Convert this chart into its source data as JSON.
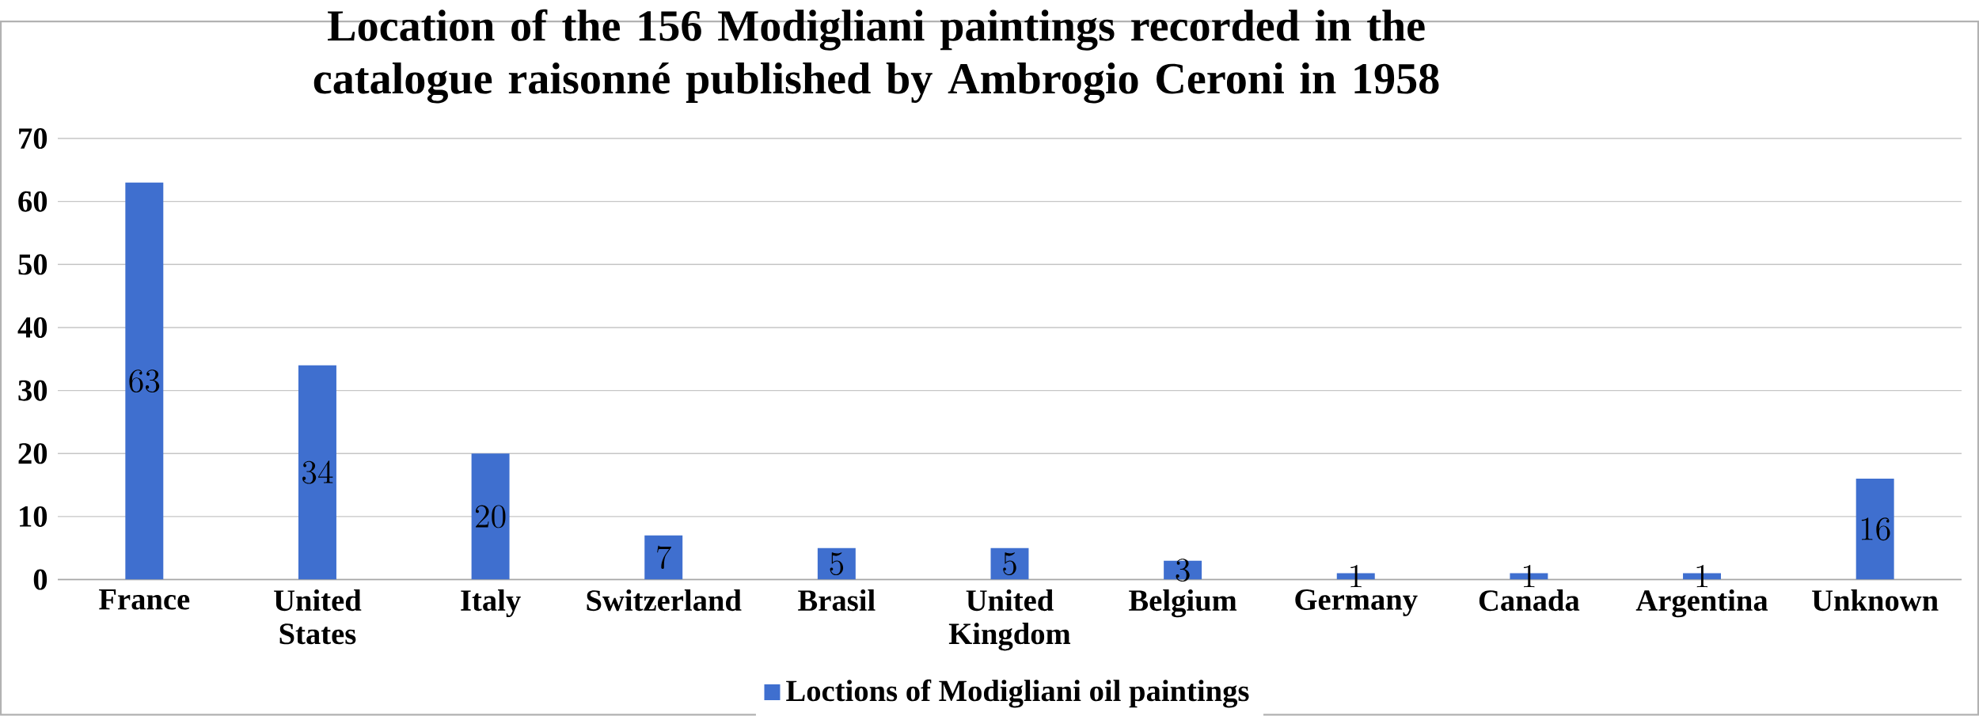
{
  "chart_data": {
    "type": "bar",
    "title": "Location of the 156 Modigliani paintings recorded in the catalogue raisonné published by Ambrogio Ceroni in 1958",
    "categories": [
      "France",
      "United States",
      "Italy",
      "Switzerland",
      "Brasil",
      "United Kingdom",
      "Belgium",
      "Germany",
      "Canada",
      "Argentina",
      "Unknown"
    ],
    "series": [
      {
        "name": "Loctions of Modigliani oil paintings",
        "color": "#3f6fcf",
        "values": [
          63,
          34,
          20,
          7,
          5,
          5,
          3,
          1,
          1,
          1,
          16
        ]
      }
    ],
    "ylim": [
      0,
      70
    ],
    "yticks": [
      0,
      10,
      20,
      30,
      40,
      50,
      60,
      70
    ],
    "grid": "y",
    "legend": "bottom",
    "data_labels": true
  }
}
